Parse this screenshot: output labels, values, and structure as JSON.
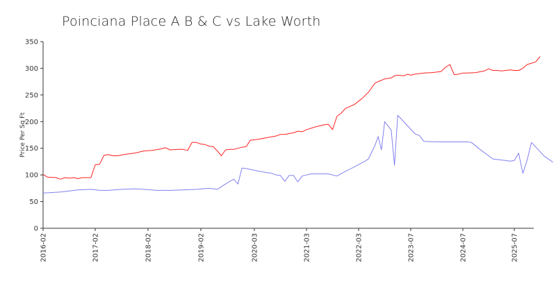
{
  "chart_data": {
    "type": "line",
    "title": "Poinciana Place A B & C vs Lake Worth",
    "xlabel": "",
    "ylabel": "Price Per Sq Ft",
    "ylim": [
      0,
      350
    ],
    "yticks": [
      0,
      50,
      100,
      150,
      200,
      250,
      300,
      350
    ],
    "xlim": [
      "2016-02",
      "2025-11"
    ],
    "xticks": [
      "2016-02",
      "2017-02",
      "2018-02",
      "2019-02",
      "2020-03",
      "2021-03",
      "2022-03",
      "2023-07",
      "2024-07",
      "2025-07"
    ],
    "grid": false,
    "series": [
      {
        "color": "#ff2020",
        "points": [
          [
            "2016-02",
            101
          ],
          [
            "2016-03",
            96
          ],
          [
            "2016-05",
            95
          ],
          [
            "2016-06",
            92
          ],
          [
            "2016-07",
            95
          ],
          [
            "2016-08",
            94
          ],
          [
            "2016-09",
            95
          ],
          [
            "2016-10",
            93
          ],
          [
            "2016-11",
            95
          ],
          [
            "2016-12",
            95
          ],
          [
            "2017-01",
            95
          ],
          [
            "2017-02",
            119
          ],
          [
            "2017-03",
            120
          ],
          [
            "2017-04",
            137
          ],
          [
            "2017-05",
            138
          ],
          [
            "2017-06",
            136
          ],
          [
            "2017-07",
            136
          ],
          [
            "2017-09",
            139
          ],
          [
            "2017-11",
            141
          ],
          [
            "2018-01",
            145
          ],
          [
            "2018-03",
            146
          ],
          [
            "2018-05",
            149
          ],
          [
            "2018-06",
            151
          ],
          [
            "2018-07",
            147
          ],
          [
            "2018-09",
            148
          ],
          [
            "2018-10",
            148
          ],
          [
            "2018-11",
            146
          ],
          [
            "2018-12",
            161
          ],
          [
            "2019-01",
            161
          ],
          [
            "2019-02",
            158
          ],
          [
            "2019-03",
            157
          ],
          [
            "2019-04",
            154
          ],
          [
            "2019-05",
            153
          ],
          [
            "2019-06",
            145
          ],
          [
            "2019-07",
            136
          ],
          [
            "2019-08",
            147
          ],
          [
            "2019-09",
            148
          ],
          [
            "2019-10",
            148
          ],
          [
            "2019-11",
            150
          ],
          [
            "2019-12",
            152
          ],
          [
            "2020-01",
            153
          ],
          [
            "2020-02",
            165
          ],
          [
            "2020-03",
            166
          ],
          [
            "2020-04",
            167
          ],
          [
            "2020-06",
            170
          ],
          [
            "2020-08",
            173
          ],
          [
            "2020-09",
            176
          ],
          [
            "2020-10",
            176
          ],
          [
            "2020-12",
            179
          ],
          [
            "2021-01",
            182
          ],
          [
            "2021-02",
            181
          ],
          [
            "2021-03",
            185
          ],
          [
            "2021-05",
            190
          ],
          [
            "2021-07",
            194
          ],
          [
            "2021-08",
            195
          ],
          [
            "2021-09",
            185
          ],
          [
            "2021-10",
            210
          ],
          [
            "2021-11",
            216
          ],
          [
            "2021-12",
            225
          ],
          [
            "2022-02",
            232
          ],
          [
            "2022-04",
            243
          ],
          [
            "2022-06",
            255
          ],
          [
            "2022-08",
            272
          ],
          [
            "2022-09",
            275
          ],
          [
            "2022-11",
            280
          ],
          [
            "2023-01",
            282
          ],
          [
            "2023-02",
            286
          ],
          [
            "2023-03",
            287
          ],
          [
            "2023-05",
            286
          ],
          [
            "2023-06",
            289
          ],
          [
            "2023-07",
            287
          ],
          [
            "2023-08",
            289
          ],
          [
            "2023-10",
            291
          ],
          [
            "2023-12",
            292
          ],
          [
            "2024-02",
            294
          ],
          [
            "2024-03",
            302
          ],
          [
            "2024-04",
            307
          ],
          [
            "2024-05",
            288
          ],
          [
            "2024-06",
            289
          ],
          [
            "2024-07",
            291
          ],
          [
            "2024-08",
            291
          ],
          [
            "2024-10",
            292
          ],
          [
            "2024-12",
            295
          ],
          [
            "2025-01",
            299
          ],
          [
            "2025-02",
            296
          ],
          [
            "2025-03",
            296
          ],
          [
            "2025-04",
            295
          ],
          [
            "2025-05",
            296
          ],
          [
            "2025-06",
            297
          ],
          [
            "2025-07",
            296
          ],
          [
            "2025-08",
            296
          ],
          [
            "2025-09",
            300
          ],
          [
            "2025-10",
            307
          ],
          [
            "2025-12",
            312
          ],
          [
            "2026-01",
            322
          ]
        ]
      },
      {
        "color": "#8080f0",
        "points": [
          [
            "2016-02",
            66
          ],
          [
            "2016-04",
            67
          ],
          [
            "2016-06",
            68
          ],
          [
            "2016-08",
            70
          ],
          [
            "2016-10",
            72
          ],
          [
            "2017-01",
            73
          ],
          [
            "2017-03",
            71
          ],
          [
            "2017-05",
            71
          ],
          [
            "2017-08",
            73
          ],
          [
            "2017-11",
            74
          ],
          [
            "2018-01",
            73
          ],
          [
            "2018-04",
            71
          ],
          [
            "2018-07",
            71
          ],
          [
            "2018-10",
            72
          ],
          [
            "2019-01",
            73
          ],
          [
            "2019-04",
            75
          ],
          [
            "2019-06",
            73
          ],
          [
            "2019-08",
            83
          ],
          [
            "2019-09",
            88
          ],
          [
            "2019-10",
            92
          ],
          [
            "2019-11",
            83
          ],
          [
            "2019-12",
            113
          ],
          [
            "2020-01",
            112
          ],
          [
            "2020-04",
            107
          ],
          [
            "2020-07",
            103
          ],
          [
            "2020-08",
            100
          ],
          [
            "2020-09",
            99
          ],
          [
            "2020-10",
            88
          ],
          [
            "2020-11",
            99
          ],
          [
            "2020-12",
            99
          ],
          [
            "2021-01",
            87
          ],
          [
            "2021-02",
            98
          ],
          [
            "2021-04",
            102
          ],
          [
            "2021-06",
            102
          ],
          [
            "2021-08",
            102
          ],
          [
            "2021-10",
            98
          ],
          [
            "2021-12",
            107
          ],
          [
            "2022-02",
            115
          ],
          [
            "2022-05",
            126
          ],
          [
            "2022-06",
            130
          ],
          [
            "2022-08",
            155
          ],
          [
            "2022-09",
            172
          ],
          [
            "2022-10",
            147
          ],
          [
            "2022-11",
            200
          ],
          [
            "2023-01",
            184
          ],
          [
            "2023-02",
            118
          ],
          [
            "2023-03",
            212
          ],
          [
            "2023-08",
            177
          ],
          [
            "2023-09",
            174
          ],
          [
            "2023-10",
            163
          ],
          [
            "2024-01",
            162
          ],
          [
            "2024-04",
            162
          ],
          [
            "2024-06",
            162
          ],
          [
            "2024-08",
            162
          ],
          [
            "2024-09",
            161
          ],
          [
            "2024-11",
            148
          ],
          [
            "2025-02",
            130
          ],
          [
            "2025-05",
            127
          ],
          [
            "2025-06",
            126
          ],
          [
            "2025-07",
            127
          ],
          [
            "2025-08",
            141
          ],
          [
            "2025-09",
            103
          ],
          [
            "2025-10",
            128
          ],
          [
            "2025-11",
            161
          ],
          [
            "2026-02",
            135
          ],
          [
            "2026-04",
            124
          ]
        ]
      }
    ]
  }
}
